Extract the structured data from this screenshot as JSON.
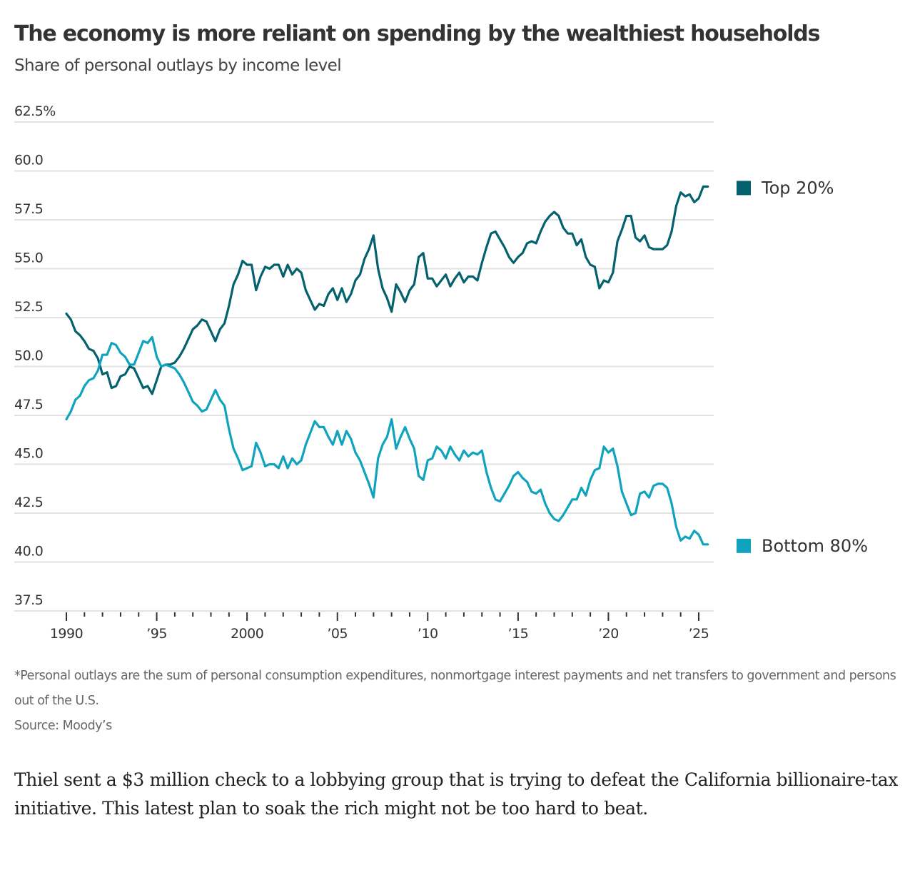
{
  "header": {
    "title": "The economy is more reliant on spending by the wealthiest households",
    "subtitle": "Share of personal outlays by income level"
  },
  "footer": {
    "note": "*Personal outlays are the sum of personal consumption expenditures, nonmortgage interest payments and net transfers to government and persons out of the U.S.",
    "source": "Source: Moody’s"
  },
  "article": {
    "paragraph": "Thiel sent a $3 million check to a lobbying group that is trying to defeat the California billionaire-tax initiative. This latest plan to soak the rich might not be too hard to beat."
  },
  "colors": {
    "top20": "#04616e",
    "bottom80": "#0fa3bd",
    "grid": "#e2e2e2",
    "axis_tick": "#333333"
  },
  "chart_data": {
    "type": "line",
    "title": "The economy is more reliant on spending by the wealthiest households",
    "subtitle": "Share of personal outlays by income level",
    "xlabel": "",
    "ylabel": "",
    "xlim": [
      1988.6,
      2027.3
    ],
    "ylim": [
      37.5,
      62.5
    ],
    "grid": true,
    "legend": "right",
    "y_ticks": [
      {
        "value": 62.5,
        "label": "62.5%"
      },
      {
        "value": 60.0,
        "label": "60.0"
      },
      {
        "value": 57.5,
        "label": "57.5"
      },
      {
        "value": 55.0,
        "label": "55.0"
      },
      {
        "value": 52.5,
        "label": "52.5"
      },
      {
        "value": 50.0,
        "label": "50.0"
      },
      {
        "value": 47.5,
        "label": "47.5"
      },
      {
        "value": 45.0,
        "label": "45.0"
      },
      {
        "value": 42.5,
        "label": "42.5"
      },
      {
        "value": 40.0,
        "label": "40.0"
      },
      {
        "value": 37.5,
        "label": "37.5"
      }
    ],
    "x_ticks": [
      {
        "value": 1990,
        "label": "1990"
      },
      {
        "value": 1995,
        "label": "’95"
      },
      {
        "value": 2000,
        "label": "2000"
      },
      {
        "value": 2005,
        "label": "’05"
      },
      {
        "value": 2010,
        "label": "’10"
      },
      {
        "value": 2015,
        "label": "’15"
      },
      {
        "value": 2020,
        "label": "’20"
      },
      {
        "value": 2025,
        "label": "’25"
      }
    ],
    "x_minor_ticks": [
      1991,
      1992,
      1993,
      1994,
      1996,
      1997,
      1998,
      1999,
      2001,
      2002,
      2003,
      2004,
      2006,
      2007,
      2008,
      2009,
      2011,
      2012,
      2013,
      2014,
      2016,
      2017,
      2018,
      2019,
      2021,
      2022,
      2023,
      2024
    ],
    "series": [
      {
        "name": "Top 20%",
        "legend_label": "Top 20%",
        "color": "#04616e",
        "x": [
          1990.0,
          1990.25,
          1990.5,
          1990.75,
          1991.0,
          1991.25,
          1991.5,
          1991.75,
          1992.0,
          1992.25,
          1992.5,
          1992.75,
          1993.0,
          1993.25,
          1993.5,
          1993.75,
          1994.0,
          1994.25,
          1994.5,
          1994.75,
          1995.0,
          1995.25,
          1995.5,
          1995.75,
          1996.0,
          1996.25,
          1996.5,
          1996.75,
          1997.0,
          1997.25,
          1997.5,
          1997.75,
          1998.0,
          1998.25,
          1998.5,
          1998.75,
          1999.0,
          1999.25,
          1999.5,
          1999.75,
          2000.0,
          2000.25,
          2000.5,
          2000.75,
          2001.0,
          2001.25,
          2001.5,
          2001.75,
          2002.0,
          2002.25,
          2002.5,
          2002.75,
          2003.0,
          2003.25,
          2003.5,
          2003.75,
          2004.0,
          2004.25,
          2004.5,
          2004.75,
          2005.0,
          2005.25,
          2005.5,
          2005.75,
          2006.0,
          2006.25,
          2006.5,
          2006.75,
          2007.0,
          2007.25,
          2007.5,
          2007.75,
          2008.0,
          2008.25,
          2008.5,
          2008.75,
          2009.0,
          2009.25,
          2009.5,
          2009.75,
          2010.0,
          2010.25,
          2010.5,
          2010.75,
          2011.0,
          2011.25,
          2011.5,
          2011.75,
          2012.0,
          2012.25,
          2012.5,
          2012.75,
          2013.0,
          2013.25,
          2013.5,
          2013.75,
          2014.0,
          2014.25,
          2014.5,
          2014.75,
          2015.0,
          2015.25,
          2015.5,
          2015.75,
          2016.0,
          2016.25,
          2016.5,
          2016.75,
          2017.0,
          2017.25,
          2017.5,
          2017.75,
          2018.0,
          2018.25,
          2018.5,
          2018.75,
          2019.0,
          2019.25,
          2019.5,
          2019.75,
          2020.0,
          2020.25,
          2020.5,
          2020.75,
          2021.0,
          2021.25,
          2021.5,
          2021.75,
          2022.0,
          2022.25,
          2022.5,
          2022.75,
          2023.0,
          2023.25,
          2023.5,
          2023.75,
          2024.0,
          2024.25,
          2024.5,
          2024.75,
          2025.0,
          2025.25,
          2025.5
        ],
        "values": [
          52.7,
          52.4,
          51.8,
          51.6,
          51.3,
          50.9,
          50.8,
          50.4,
          49.6,
          49.7,
          48.9,
          49.0,
          49.5,
          49.6,
          50.0,
          49.9,
          49.4,
          48.9,
          49.0,
          48.6,
          49.3,
          50.0,
          50.1,
          50.1,
          50.2,
          50.5,
          50.9,
          51.4,
          51.9,
          52.1,
          52.4,
          52.3,
          51.8,
          51.3,
          51.9,
          52.2,
          53.1,
          54.2,
          54.7,
          55.4,
          55.2,
          55.2,
          53.9,
          54.6,
          55.1,
          55.0,
          55.2,
          55.2,
          54.6,
          55.2,
          54.7,
          55.0,
          54.8,
          53.9,
          53.4,
          52.9,
          53.2,
          53.1,
          53.7,
          54.0,
          53.4,
          54.0,
          53.3,
          53.7,
          54.4,
          54.7,
          55.5,
          56.0,
          56.7,
          55.0,
          54.0,
          53.5,
          52.8,
          54.2,
          53.8,
          53.3,
          53.9,
          54.2,
          55.6,
          55.8,
          54.5,
          54.5,
          54.1,
          54.4,
          54.7,
          54.1,
          54.5,
          54.8,
          54.3,
          54.6,
          54.6,
          54.4,
          55.3,
          56.1,
          56.8,
          56.9,
          56.5,
          56.1,
          55.6,
          55.3,
          55.6,
          55.8,
          56.3,
          56.4,
          56.3,
          56.9,
          57.4,
          57.7,
          57.9,
          57.7,
          57.1,
          56.8,
          56.8,
          56.2,
          56.5,
          55.6,
          55.2,
          55.1,
          54.0,
          54.4,
          54.3,
          54.8,
          56.4,
          57.0,
          57.7,
          57.7,
          56.6,
          56.4,
          56.7,
          56.1,
          56.0,
          56.0,
          56.0,
          56.2,
          56.9,
          58.2,
          58.9,
          58.7,
          58.8,
          58.4,
          58.6,
          59.2,
          59.2
        ]
      },
      {
        "name": "Bottom 80%",
        "legend_label": "Bottom 80%",
        "color": "#0fa3bd",
        "x": [
          1990.0,
          1990.25,
          1990.5,
          1990.75,
          1991.0,
          1991.25,
          1991.5,
          1991.75,
          1992.0,
          1992.25,
          1992.5,
          1992.75,
          1993.0,
          1993.25,
          1993.5,
          1993.75,
          1994.0,
          1994.25,
          1994.5,
          1994.75,
          1995.0,
          1995.25,
          1995.5,
          1995.75,
          1996.0,
          1996.25,
          1996.5,
          1996.75,
          1997.0,
          1997.25,
          1997.5,
          1997.75,
          1998.0,
          1998.25,
          1998.5,
          1998.75,
          1999.0,
          1999.25,
          1999.5,
          1999.75,
          2000.0,
          2000.25,
          2000.5,
          2000.75,
          2001.0,
          2001.25,
          2001.5,
          2001.75,
          2002.0,
          2002.25,
          2002.5,
          2002.75,
          2003.0,
          2003.25,
          2003.5,
          2003.75,
          2004.0,
          2004.25,
          2004.5,
          2004.75,
          2005.0,
          2005.25,
          2005.5,
          2005.75,
          2006.0,
          2006.25,
          2006.5,
          2006.75,
          2007.0,
          2007.25,
          2007.5,
          2007.75,
          2008.0,
          2008.25,
          2008.5,
          2008.75,
          2009.0,
          2009.25,
          2009.5,
          2009.75,
          2010.0,
          2010.25,
          2010.5,
          2010.75,
          2011.0,
          2011.25,
          2011.5,
          2011.75,
          2012.0,
          2012.25,
          2012.5,
          2012.75,
          2013.0,
          2013.25,
          2013.5,
          2013.75,
          2014.0,
          2014.25,
          2014.5,
          2014.75,
          2015.0,
          2015.25,
          2015.5,
          2015.75,
          2016.0,
          2016.25,
          2016.5,
          2016.75,
          2017.0,
          2017.25,
          2017.5,
          2017.75,
          2018.0,
          2018.25,
          2018.5,
          2018.75,
          2019.0,
          2019.25,
          2019.5,
          2019.75,
          2020.0,
          2020.25,
          2020.5,
          2020.75,
          2021.0,
          2021.25,
          2021.5,
          2021.75,
          2022.0,
          2022.25,
          2022.5,
          2022.75,
          2023.0,
          2023.25,
          2023.5,
          2023.75,
          2024.0,
          2024.25,
          2024.5,
          2024.75,
          2025.0,
          2025.25,
          2025.5
        ],
        "values": [
          47.3,
          47.7,
          48.3,
          48.5,
          49.0,
          49.3,
          49.4,
          49.8,
          50.6,
          50.6,
          51.2,
          51.1,
          50.7,
          50.5,
          50.1,
          50.1,
          50.7,
          51.3,
          51.2,
          51.5,
          50.5,
          50.0,
          50.1,
          50.0,
          49.9,
          49.6,
          49.2,
          48.7,
          48.2,
          48.0,
          47.7,
          47.8,
          48.3,
          48.8,
          48.3,
          48.0,
          46.8,
          45.8,
          45.3,
          44.7,
          44.8,
          44.9,
          46.1,
          45.6,
          44.9,
          45.0,
          45.0,
          44.8,
          45.4,
          44.8,
          45.3,
          45.0,
          45.2,
          46.0,
          46.6,
          47.2,
          46.9,
          46.9,
          46.4,
          46.0,
          46.7,
          46.0,
          46.7,
          46.3,
          45.6,
          45.2,
          44.6,
          44.0,
          43.3,
          45.3,
          46.0,
          46.4,
          47.3,
          45.8,
          46.4,
          46.9,
          46.3,
          45.8,
          44.4,
          44.2,
          45.2,
          45.3,
          45.9,
          45.7,
          45.3,
          45.9,
          45.5,
          45.2,
          45.7,
          45.4,
          45.6,
          45.5,
          45.7,
          44.6,
          43.8,
          43.2,
          43.1,
          43.5,
          43.9,
          44.4,
          44.6,
          44.3,
          44.1,
          43.6,
          43.5,
          43.7,
          43.0,
          42.5,
          42.2,
          42.1,
          42.4,
          42.8,
          43.2,
          43.2,
          43.8,
          43.4,
          44.2,
          44.7,
          44.8,
          45.9,
          45.6,
          45.8,
          44.9,
          43.6,
          43.0,
          42.4,
          42.5,
          43.5,
          43.6,
          43.3,
          43.9,
          44.0,
          44.0,
          43.8,
          43.0,
          41.8,
          41.1,
          41.3,
          41.2,
          41.6,
          41.4,
          40.9,
          40.9
        ]
      }
    ]
  }
}
